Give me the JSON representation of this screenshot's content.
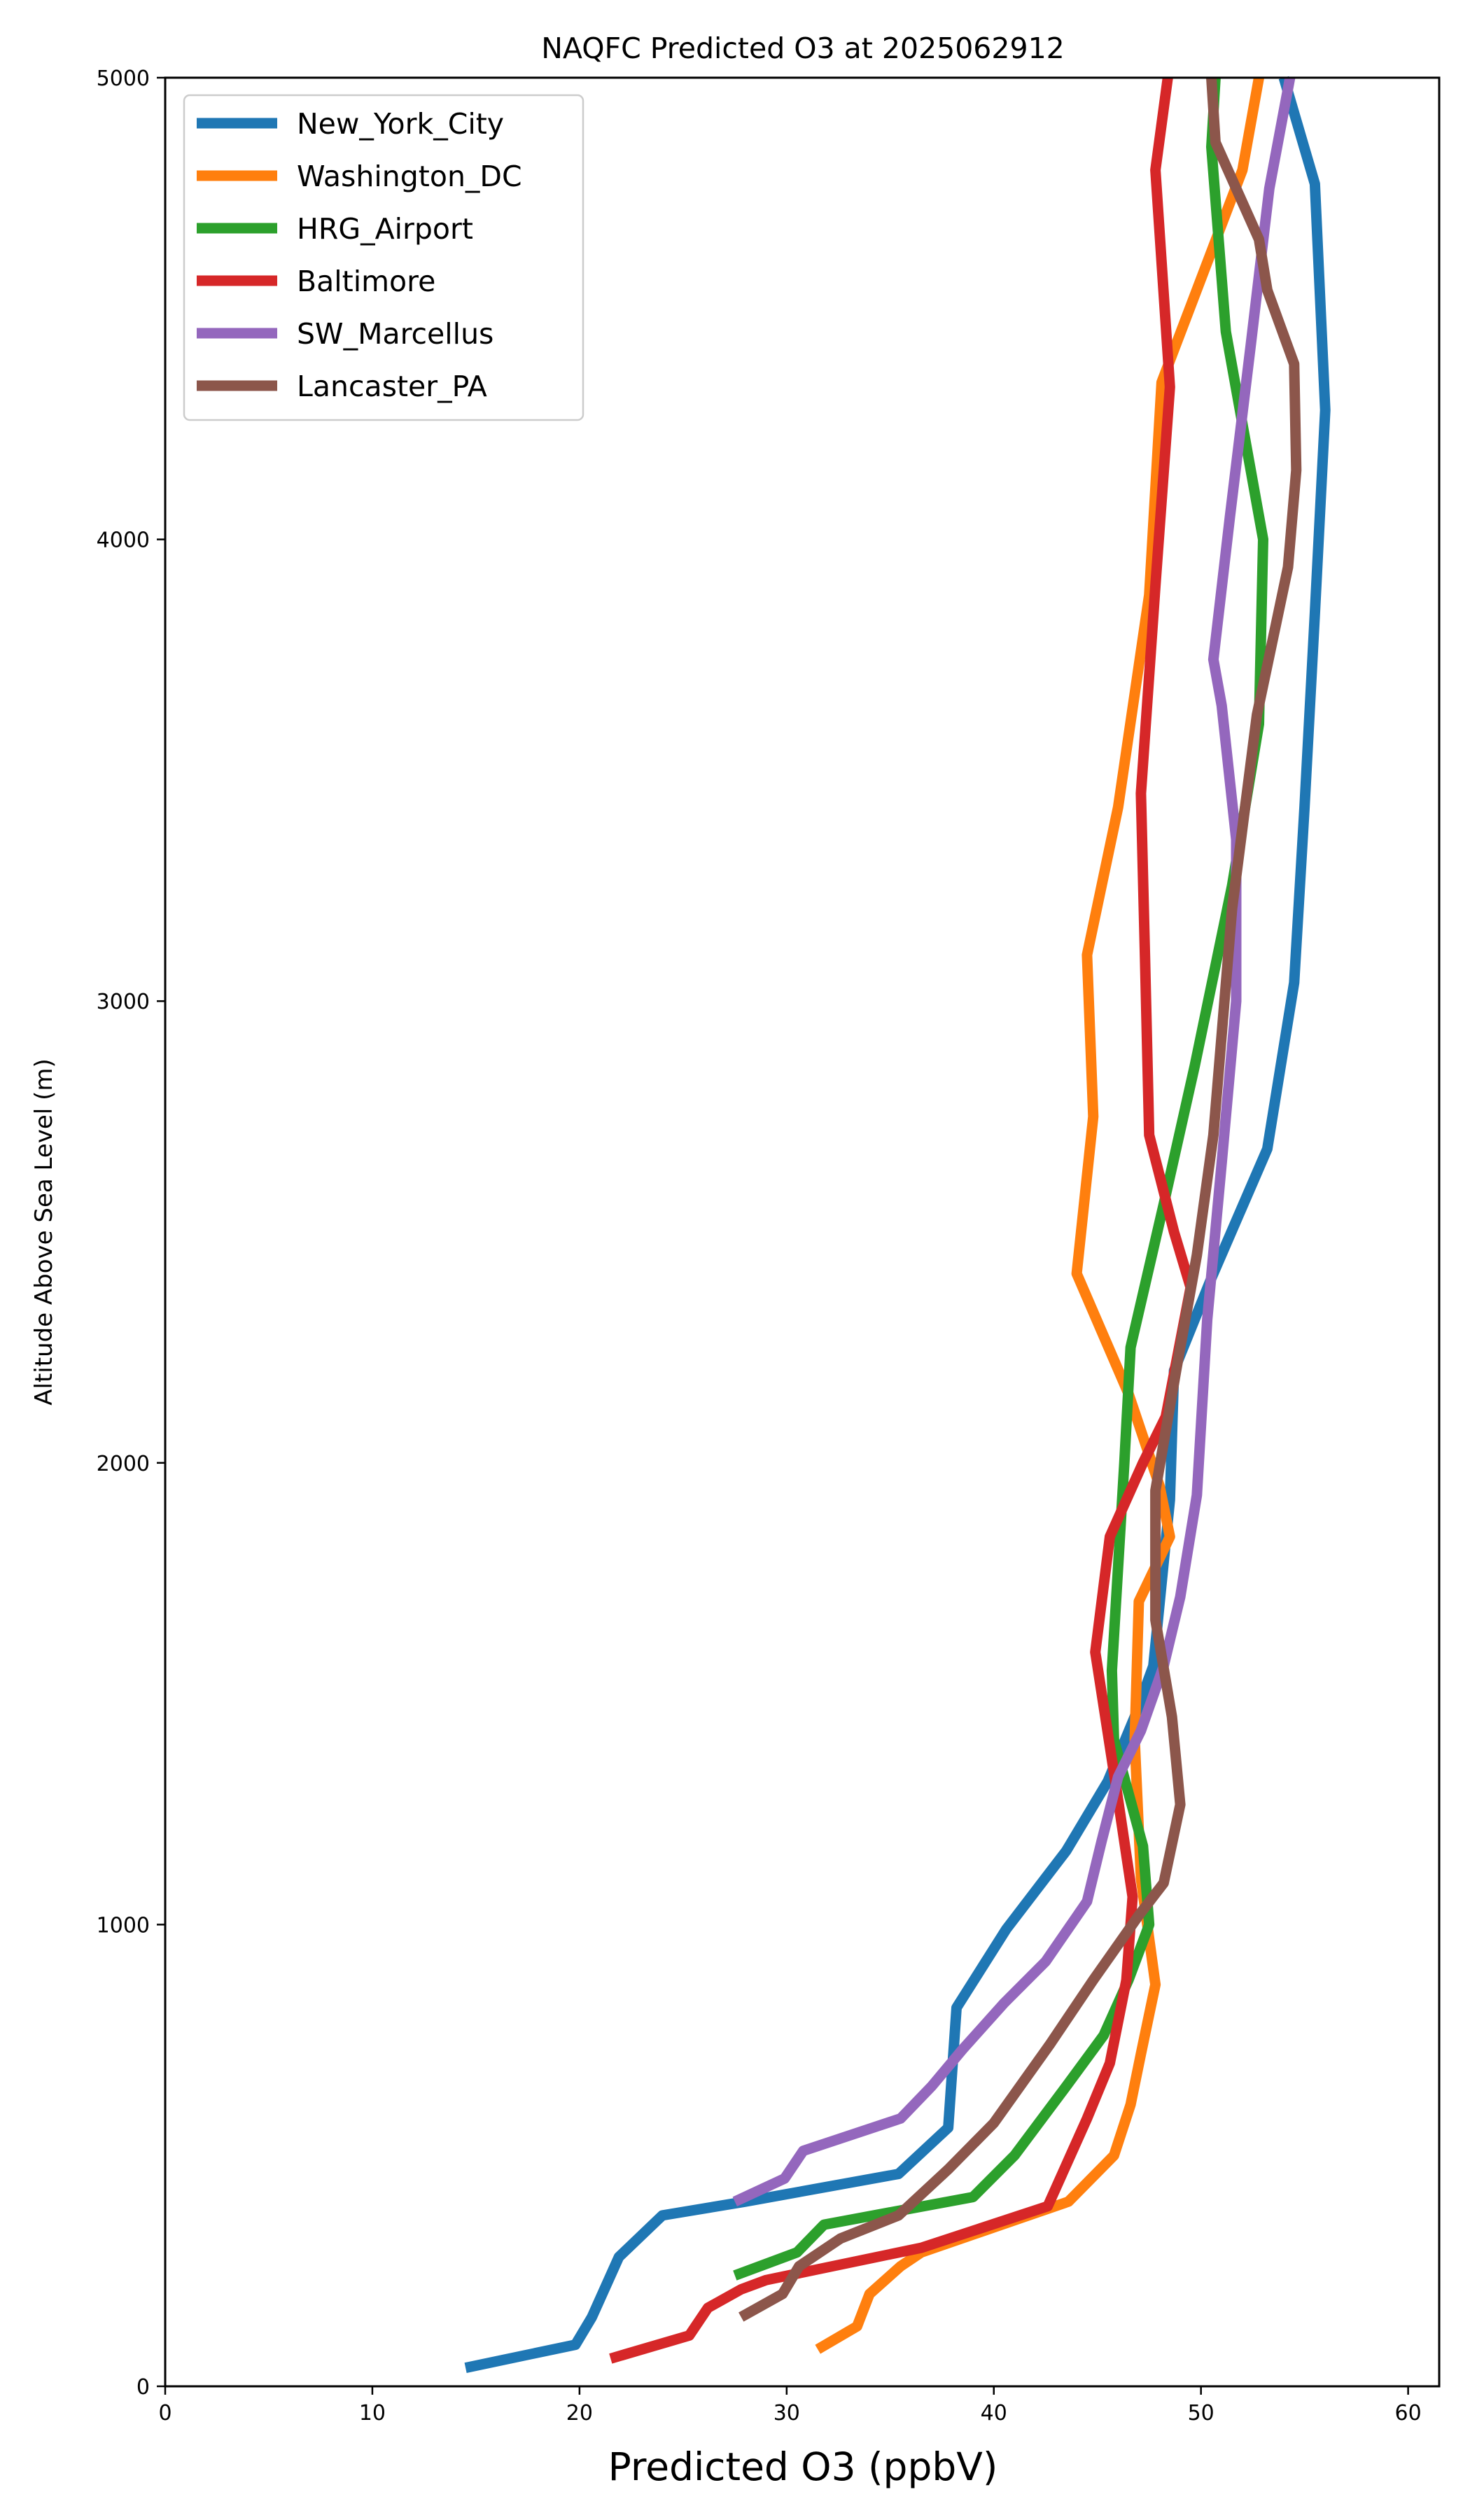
{
  "chart_data": {
    "type": "line",
    "title": "NAQFC Predicted O3 at 2025062912",
    "xlabel": "Predicted O3 (ppbV)",
    "ylabel": "Altitude Above Sea Level (m)",
    "xlim": [
      0,
      61.5
    ],
    "ylim": [
      0,
      5000
    ],
    "xticks": [
      0,
      10,
      20,
      30,
      40,
      50,
      60
    ],
    "yticks": [
      0,
      1000,
      2000,
      3000,
      4000,
      5000
    ],
    "grid": false,
    "legend_position": "top-left",
    "series": [
      {
        "name": "New_York_City",
        "color": "#1f77b4",
        "points": [
          [
            14.5,
            40
          ],
          [
            19.8,
            90
          ],
          [
            20.6,
            150
          ],
          [
            21.9,
            280
          ],
          [
            24,
            370
          ],
          [
            28,
            400
          ],
          [
            35.4,
            460
          ],
          [
            37.8,
            560
          ],
          [
            38.2,
            820
          ],
          [
            40.6,
            990
          ],
          [
            43.5,
            1160
          ],
          [
            45.5,
            1310
          ],
          [
            46.8,
            1450
          ],
          [
            47.7,
            1560
          ],
          [
            48.5,
            1920
          ],
          [
            48.7,
            2200
          ],
          [
            50.5,
            2400
          ],
          [
            53.2,
            2680
          ],
          [
            54.5,
            3040
          ],
          [
            55,
            3420
          ],
          [
            55.5,
            3840
          ],
          [
            56,
            4280
          ],
          [
            55.5,
            4770
          ],
          [
            54,
            5000
          ]
        ]
      },
      {
        "name": "Washington_DC",
        "color": "#ff7f0e",
        "points": [
          [
            31.5,
            80
          ],
          [
            33.4,
            130
          ],
          [
            34,
            200
          ],
          [
            35.5,
            260
          ],
          [
            36.5,
            290
          ],
          [
            43.6,
            400
          ],
          [
            45.8,
            500
          ],
          [
            46.6,
            610
          ],
          [
            47.1,
            720
          ],
          [
            47.8,
            870
          ],
          [
            47.1,
            1100
          ],
          [
            46.8,
            1400
          ],
          [
            47,
            1700
          ],
          [
            48.5,
            1840
          ],
          [
            48,
            1950
          ],
          [
            46.5,
            2150
          ],
          [
            44,
            2410
          ],
          [
            44.8,
            2750
          ],
          [
            44.5,
            3100
          ],
          [
            46,
            3420
          ],
          [
            47.5,
            3880
          ],
          [
            48.1,
            4340
          ],
          [
            52,
            4800
          ],
          [
            52.8,
            5000
          ]
        ]
      },
      {
        "name": "HRG_Airport",
        "color": "#2ca02c",
        "points": [
          [
            27.5,
            240
          ],
          [
            30.5,
            290
          ],
          [
            31.8,
            350
          ],
          [
            39,
            410
          ],
          [
            41,
            500
          ],
          [
            43.5,
            650
          ],
          [
            45.3,
            760
          ],
          [
            46.5,
            880
          ],
          [
            47.5,
            1000
          ],
          [
            47.2,
            1170
          ],
          [
            45.8,
            1400
          ],
          [
            45.7,
            1550
          ],
          [
            46.3,
            2000
          ],
          [
            46.6,
            2250
          ],
          [
            48.2,
            2560
          ],
          [
            49.7,
            2860
          ],
          [
            51.5,
            3250
          ],
          [
            52.8,
            3600
          ],
          [
            53,
            4000
          ],
          [
            51.2,
            4450
          ],
          [
            50.5,
            4850
          ],
          [
            50.7,
            5000
          ]
        ]
      },
      {
        "name": "Baltimore",
        "color": "#d62728",
        "points": [
          [
            21.5,
            60
          ],
          [
            25.3,
            110
          ],
          [
            26.2,
            170
          ],
          [
            27.8,
            210
          ],
          [
            29,
            230
          ],
          [
            36.5,
            300
          ],
          [
            42.6,
            390
          ],
          [
            43.5,
            480
          ],
          [
            44.5,
            580
          ],
          [
            45.6,
            700
          ],
          [
            46.4,
            880
          ],
          [
            46.7,
            1060
          ],
          [
            45.9,
            1300
          ],
          [
            44.9,
            1590
          ],
          [
            45.6,
            1840
          ],
          [
            47.2,
            2000
          ],
          [
            48.3,
            2100
          ],
          [
            49.5,
            2380
          ],
          [
            48.7,
            2500
          ],
          [
            47.5,
            2710
          ],
          [
            47.3,
            3090
          ],
          [
            47.1,
            3450
          ],
          [
            47.8,
            3900
          ],
          [
            48.5,
            4330
          ],
          [
            47.8,
            4800
          ],
          [
            48.4,
            5000
          ]
        ]
      },
      {
        "name": "SW_Marcellus",
        "color": "#9467bd",
        "points": [
          [
            27.5,
            400
          ],
          [
            29.9,
            450
          ],
          [
            30.8,
            510
          ],
          [
            35.5,
            580
          ],
          [
            37,
            650
          ],
          [
            38.5,
            730
          ],
          [
            40.5,
            830
          ],
          [
            42.5,
            920
          ],
          [
            44.5,
            1050
          ],
          [
            45.2,
            1180
          ],
          [
            46,
            1320
          ],
          [
            47.1,
            1420
          ],
          [
            48.2,
            1560
          ],
          [
            49,
            1710
          ],
          [
            49.8,
            1930
          ],
          [
            50.3,
            2310
          ],
          [
            51,
            2650
          ],
          [
            51.7,
            3000
          ],
          [
            51.7,
            3350
          ],
          [
            51,
            3640
          ],
          [
            50.6,
            3740
          ],
          [
            51.4,
            4050
          ],
          [
            52.4,
            4420
          ],
          [
            53.3,
            4760
          ],
          [
            54.3,
            5000
          ]
        ]
      },
      {
        "name": "Lancaster_PA",
        "color": "#8c564b",
        "points": [
          [
            27.8,
            150
          ],
          [
            29.8,
            200
          ],
          [
            30.6,
            260
          ],
          [
            32.6,
            320
          ],
          [
            35.4,
            370
          ],
          [
            37.8,
            470
          ],
          [
            40,
            570
          ],
          [
            42.7,
            740
          ],
          [
            44.8,
            880
          ],
          [
            47,
            1020
          ],
          [
            48.2,
            1090
          ],
          [
            49,
            1260
          ],
          [
            48.6,
            1450
          ],
          [
            47.8,
            1660
          ],
          [
            47.8,
            1940
          ],
          [
            48.8,
            2200
          ],
          [
            49.8,
            2450
          ],
          [
            50.6,
            2710
          ],
          [
            51.5,
            3200
          ],
          [
            52.7,
            3620
          ],
          [
            54.2,
            3940
          ],
          [
            54.6,
            4150
          ],
          [
            54.5,
            4380
          ],
          [
            53.2,
            4540
          ],
          [
            52.8,
            4650
          ],
          [
            50.7,
            4860
          ],
          [
            50.5,
            5000
          ]
        ]
      }
    ]
  }
}
